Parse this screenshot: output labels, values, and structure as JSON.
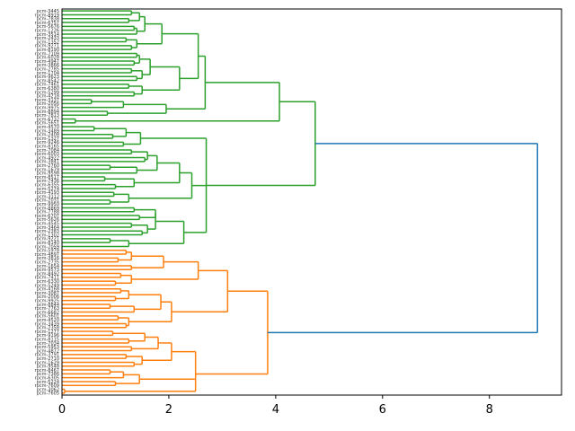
{
  "chart_data": {
    "type": "dendrogram",
    "title": "",
    "xlabel": "",
    "ylabel": "",
    "orientation": "right",
    "xlim": [
      0,
      9.35
    ],
    "xticks": [
      0,
      2,
      4,
      6,
      8
    ],
    "xtick_labels": [
      "0",
      "2",
      "4",
      "6",
      "8"
    ],
    "grid": false,
    "colors": {
      "cluster_1": "#2ca02c",
      "cluster_2": "#ff7f0e",
      "above_threshold": "#1f77b4"
    },
    "root_height": 8.9,
    "clusters": [
      {
        "name": "cluster_1",
        "color": "#2ca02c",
        "height": 4.74,
        "tree": [
          4.74,
          [
            4.07,
            [
              2.68,
              [
                2.55,
                [
                  1.87,
                  [
                    1.55,
                    [
                      1.45,
                      [
                        1.3,
                        1,
                        1
                      ],
                      [
                        1.25,
                        1,
                        1
                      ]
                    ],
                    [
                      1.4,
                      [
                        1.35,
                        1,
                        1
                      ],
                      1
                    ]
                  ],
                  [
                    1.4,
                    [
                      1.2,
                      1,
                      1
                    ],
                    [
                      1.3,
                      1,
                      1
                    ]
                  ]
                ],
                [
                  2.2,
                  [
                    1.65,
                    [
                      1.45,
                      [
                        1.4,
                        1,
                        1
                      ],
                      [
                        1.35,
                        1,
                        1
                      ]
                    ],
                    [
                      1.5,
                      [
                        1.3,
                        1,
                        1
                      ],
                      [
                        1.4,
                        1,
                        1
                      ]
                    ]
                  ],
                  [
                    1.5,
                    [
                      1.25,
                      1,
                      1
                    ],
                    [
                      1.35,
                      1,
                      1
                    ]
                  ]
                ]
              ],
              [
                1.95,
                [
                  1.15,
                  [
                    0.55,
                    1,
                    1
                  ],
                  1
                ],
                [
                  0.85,
                  1,
                  1
                ]
              ]
            ],
            [
              0.25,
              1,
              1
            ]
          ],
          [
            2.7,
            [
              1.47,
              [
                1.2,
                [
                  0.6,
                  1,
                  1
                ],
                [
                  0.95,
                  1,
                  1
                ]
              ],
              [
                1.15,
                1,
                1
              ]
            ],
            [
              2.43,
              [
                2.2,
                [
                  1.78,
                  [
                    1.6,
                    [
                      1.3,
                      1,
                      1
                    ],
                    [
                      1.55,
                      1,
                      1
                    ]
                  ],
                  [
                    1.4,
                    [
                      0.9,
                      1,
                      1
                    ],
                    1
                  ]
                ],
                [
                  1.35,
                  [
                    0.8,
                    1,
                    1
                  ],
                  [
                    1.0,
                    1,
                    1
                  ]
                ]
              ],
              [
                1.25,
                [
                  0.97,
                  1,
                  1
                ],
                [
                  0.9,
                  1,
                  1
                ]
              ]
            ],
            [
              2.28,
              [
                1.75,
                [
                  1.75,
                  [
                    1.35,
                    1,
                    1
                  ],
                  [
                    1.45,
                    1,
                    1
                  ]
                ],
                [
                  1.6,
                  [
                    1.3,
                    1,
                    1
                  ],
                  [
                    1.5,
                    1,
                    1
                  ]
                ]
              ],
              [
                1.25,
                [
                  0.9,
                  1,
                  1
                ],
                1
              ]
            ]
          ]
        ]
      },
      {
        "name": "cluster_2",
        "color": "#ff7f0e",
        "height": 3.85,
        "tree": [
          3.85,
          [
            3.1,
            [
              2.55,
              [
                1.9,
                [
                  1.3,
                  [
                    1.2,
                    1,
                    1
                  ],
                  [
                    1.05,
                    1,
                    1
                  ]
                ],
                [
                  1.3,
                  1,
                  1
                ]
              ],
              [
                1.3,
                [
                  1.1,
                  1,
                  1
                ],
                [
                  1.0,
                  1,
                  1
                ]
              ]
            ],
            [
              2.05,
              [
                1.85,
                [
                  1.25,
                  [
                    1.1,
                    1,
                    1
                  ],
                  [
                    1.0,
                    1,
                    1
                  ]
                ],
                [
                  1.35,
                  [
                    0.9,
                    1,
                    1
                  ],
                  1
                ]
              ],
              [
                1.25,
                [
                  1.05,
                  1,
                  1
                ],
                [
                  1.2,
                  1,
                  1
                ]
              ]
            ]
          ],
          [
            2.5,
            [
              2.05,
              [
                1.8,
                [
                  1.55,
                  [
                    0.95,
                    1,
                    1
                  ],
                  [
                    1.25,
                    1,
                    1
                  ]
                ],
                [
                  1.3,
                  1,
                  1
                ]
              ],
              [
                1.5,
                [
                  1.2,
                  1,
                  1
                ],
                [
                  1.35,
                  1,
                  1
                ]
              ]
            ],
            [
              1.45,
              [
                1.15,
                [
                  0.9,
                  1,
                  1
                ],
                1
              ],
              [
                1.0,
                1,
                1
              ]
            ],
            [
              0.05,
              1,
              1
            ]
          ]
        ]
      }
    ],
    "leaf_labels_visible": [
      "pcm-3445",
      "rpcm-1226",
      "rpcm-7609",
      "pcm-7605"
    ]
  }
}
